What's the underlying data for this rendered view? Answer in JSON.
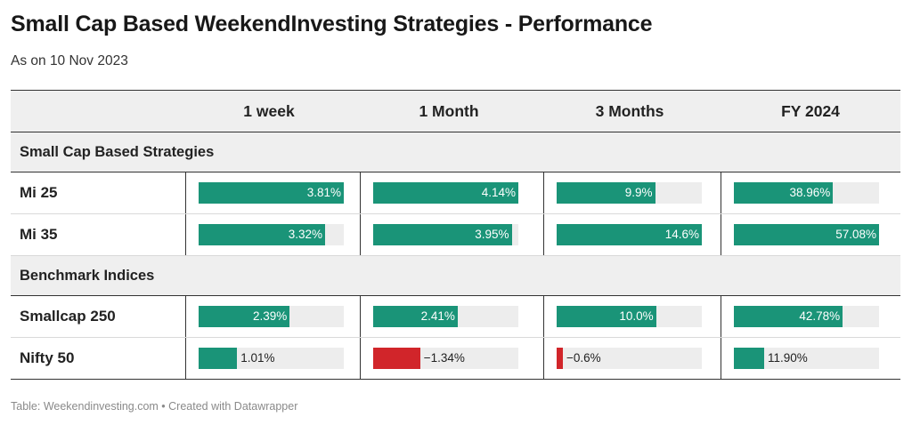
{
  "title": "Small Cap Based WeekendInvesting Strategies - Performance",
  "subtitle": "As on 10 Nov 2023",
  "footer": "Table: Weekendinvesting.com • Created with Datawrapper",
  "colors": {
    "positive": "#1a9478",
    "negative": "#d1252a",
    "track": "#ededed",
    "header_bg": "#efefef"
  },
  "chart_data": {
    "type": "table",
    "columns": [
      "1 week",
      "1 Month",
      "3 Months",
      "FY 2024"
    ],
    "groups": [
      {
        "name": "Small Cap Based Strategies",
        "rows": [
          {
            "name": "Mi 25",
            "values": [
              3.81,
              4.14,
              9.9,
              38.96
            ],
            "labels": [
              "3.81%",
              "4.14%",
              "9.9%",
              "38.96%"
            ]
          },
          {
            "name": "Mi 35",
            "values": [
              3.32,
              3.95,
              14.6,
              57.08
            ],
            "labels": [
              "3.32%",
              "3.95%",
              "14.6%",
              "57.08%"
            ]
          }
        ]
      },
      {
        "name": "Benchmark Indices",
        "rows": [
          {
            "name": "Smallcap 250",
            "values": [
              2.39,
              2.41,
              10.0,
              42.78
            ],
            "labels": [
              "2.39%",
              "2.41%",
              "10.0%",
              "42.78%"
            ]
          },
          {
            "name": "Nifty 50",
            "values": [
              1.01,
              -1.34,
              -0.6,
              11.9
            ],
            "labels": [
              "1.01%",
              "−1.34%",
              "−0.6%",
              "11.90%"
            ]
          }
        ]
      }
    ]
  }
}
